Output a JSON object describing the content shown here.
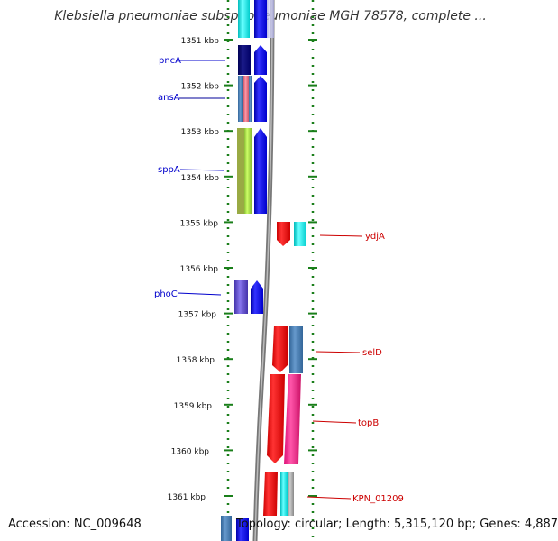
{
  "title": "Klebsiella pneumoniae subsp. pneumoniae MGH 78578, complete ...",
  "footer": {
    "accession": "Accession: NC_009648",
    "topology": "Topology: circular; Length: 5,315,120 bp; Genes: 4,887"
  },
  "scale": {
    "unit": "kbp",
    "ticks": [
      "1351 kbp",
      "1352 kbp",
      "1353 kbp",
      "1354 kbp",
      "1355 kbp",
      "1356 kbp",
      "1357 kbp",
      "1358 kbp",
      "1359 kbp",
      "1360 kbp",
      "1361 kbp"
    ]
  },
  "genes": [
    {
      "name": "pncA",
      "strand": "left",
      "color": "#0000cc"
    },
    {
      "name": "ansA",
      "strand": "left",
      "color": "#0000cc"
    },
    {
      "name": "sppA",
      "strand": "left",
      "color": "#0000cc"
    },
    {
      "name": "phoC",
      "strand": "left",
      "color": "#0000cc"
    },
    {
      "name": "ydjA",
      "strand": "right",
      "color": "#cc0000"
    },
    {
      "name": "selD",
      "strand": "right",
      "color": "#cc0000"
    },
    {
      "name": "topB",
      "strand": "right",
      "color": "#cc0000"
    },
    {
      "name": "KPN_01209",
      "strand": "right",
      "color": "#cc0000"
    }
  ],
  "colors": {
    "forward_arrow": "#0000ee",
    "reverse_arrow": "#ee0000",
    "axis_dots": "#1a7f1a",
    "backbone": "#888888"
  }
}
